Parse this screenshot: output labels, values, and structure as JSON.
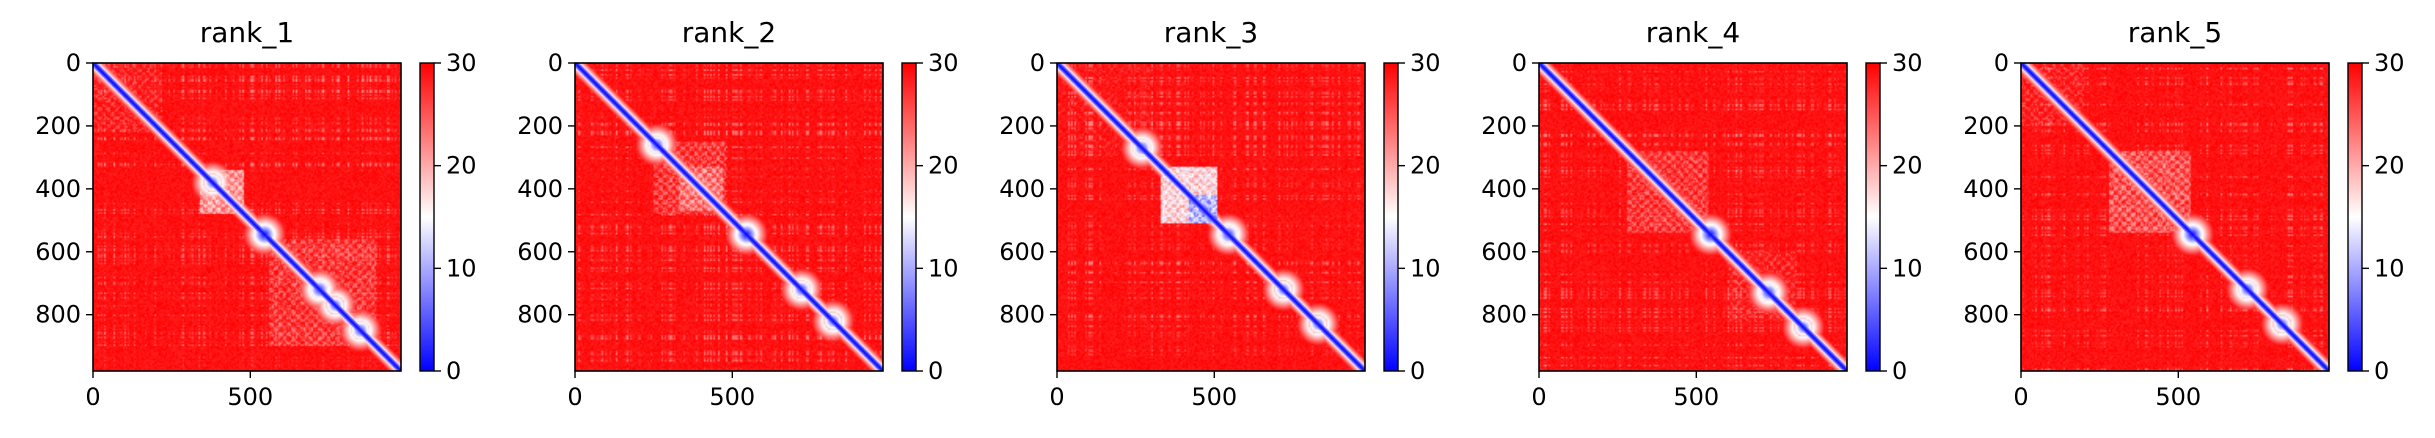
{
  "chart_data": [
    {
      "type": "heatmap",
      "title": "rank_1",
      "x_ticks": [
        0,
        500
      ],
      "y_ticks": [
        0,
        200,
        400,
        600,
        800
      ],
      "xlim": [
        0,
        979
      ],
      "ylim": [
        979,
        0
      ],
      "colorbar": {
        "range": [
          0,
          30
        ],
        "ticks": [
          0,
          10,
          20,
          30
        ],
        "colors": [
          "#0000ff",
          "#ffffff",
          "#ff0000"
        ]
      },
      "background_value": 30,
      "diagonal_value": 0,
      "features": [
        {
          "kind": "block",
          "range": [
            340,
            480
          ],
          "value": 16
        },
        {
          "kind": "block",
          "range": [
            0,
            220
          ],
          "value": 24
        },
        {
          "kind": "block",
          "range": [
            560,
            900
          ],
          "value": 22
        },
        {
          "kind": "node",
          "at": 545,
          "value": 0
        },
        {
          "kind": "node",
          "at": 720,
          "value": 2
        },
        {
          "kind": "node",
          "at": 770,
          "value": 4
        },
        {
          "kind": "node",
          "at": 850,
          "value": 3
        },
        {
          "kind": "node",
          "at": 380,
          "value": 4
        }
      ]
    },
    {
      "type": "heatmap",
      "title": "rank_2",
      "x_ticks": [
        0,
        500
      ],
      "y_ticks": [
        0,
        200,
        400,
        600,
        800
      ],
      "xlim": [
        0,
        979
      ],
      "ylim": [
        979,
        0
      ],
      "colorbar": {
        "range": [
          0,
          30
        ],
        "ticks": [
          0,
          10,
          20,
          30
        ],
        "colors": [
          "#0000ff",
          "#ffffff",
          "#ff0000"
        ]
      },
      "background_value": 30,
      "diagonal_value": 0,
      "features": [
        {
          "kind": "block",
          "range": [
            250,
            480
          ],
          "value": 22
        },
        {
          "kind": "block",
          "range": [
            330,
            470
          ],
          "value": 18
        },
        {
          "kind": "node",
          "at": 260,
          "value": 3
        },
        {
          "kind": "node",
          "at": 545,
          "value": 0
        },
        {
          "kind": "node",
          "at": 720,
          "value": 3
        },
        {
          "kind": "node",
          "at": 820,
          "value": 4
        }
      ]
    },
    {
      "type": "heatmap",
      "title": "rank_3",
      "x_ticks": [
        0,
        500
      ],
      "y_ticks": [
        0,
        200,
        400,
        600,
        800
      ],
      "xlim": [
        0,
        979
      ],
      "ylim": [
        979,
        0
      ],
      "colorbar": {
        "range": [
          0,
          30
        ],
        "ticks": [
          0,
          10,
          20,
          30
        ],
        "colors": [
          "#0000ff",
          "#ffffff",
          "#ff0000"
        ]
      },
      "background_value": 30,
      "diagonal_value": 0,
      "features": [
        {
          "kind": "block",
          "range": [
            330,
            510
          ],
          "value": 12
        },
        {
          "kind": "block",
          "range": [
            420,
            510
          ],
          "value": 6
        },
        {
          "kind": "block",
          "range": [
            0,
            300
          ],
          "value": 26
        },
        {
          "kind": "node",
          "at": 270,
          "value": 3
        },
        {
          "kind": "node",
          "at": 545,
          "value": 2
        },
        {
          "kind": "node",
          "at": 720,
          "value": 4
        },
        {
          "kind": "node",
          "at": 830,
          "value": 4
        }
      ]
    },
    {
      "type": "heatmap",
      "title": "rank_4",
      "x_ticks": [
        0,
        500
      ],
      "y_ticks": [
        0,
        200,
        400,
        600,
        800
      ],
      "xlim": [
        0,
        979
      ],
      "ylim": [
        979,
        0
      ],
      "colorbar": {
        "range": [
          0,
          30
        ],
        "ticks": [
          0,
          10,
          20,
          30
        ],
        "colors": [
          "#0000ff",
          "#ffffff",
          "#ff0000"
        ]
      },
      "background_value": 30,
      "diagonal_value": 0,
      "features": [
        {
          "kind": "block",
          "range": [
            280,
            540
          ],
          "value": 22
        },
        {
          "kind": "block",
          "range": [
            600,
            820
          ],
          "value": 24
        },
        {
          "kind": "node",
          "at": 545,
          "value": 0
        },
        {
          "kind": "node",
          "at": 730,
          "value": 2
        },
        {
          "kind": "node",
          "at": 840,
          "value": 4
        }
      ]
    },
    {
      "type": "heatmap",
      "title": "rank_5",
      "x_ticks": [
        0,
        500
      ],
      "y_ticks": [
        0,
        200,
        400,
        600,
        800
      ],
      "xlim": [
        0,
        979
      ],
      "ylim": [
        979,
        0
      ],
      "colorbar": {
        "range": [
          0,
          30
        ],
        "ticks": [
          0,
          10,
          20,
          30
        ],
        "colors": [
          "#0000ff",
          "#ffffff",
          "#ff0000"
        ]
      },
      "background_value": 30,
      "diagonal_value": 0,
      "features": [
        {
          "kind": "block",
          "range": [
            280,
            540
          ],
          "value": 20
        },
        {
          "kind": "block",
          "range": [
            0,
            200
          ],
          "value": 24
        },
        {
          "kind": "node",
          "at": 545,
          "value": 0
        },
        {
          "kind": "node",
          "at": 720,
          "value": 3
        },
        {
          "kind": "node",
          "at": 830,
          "value": 4
        }
      ]
    }
  ]
}
